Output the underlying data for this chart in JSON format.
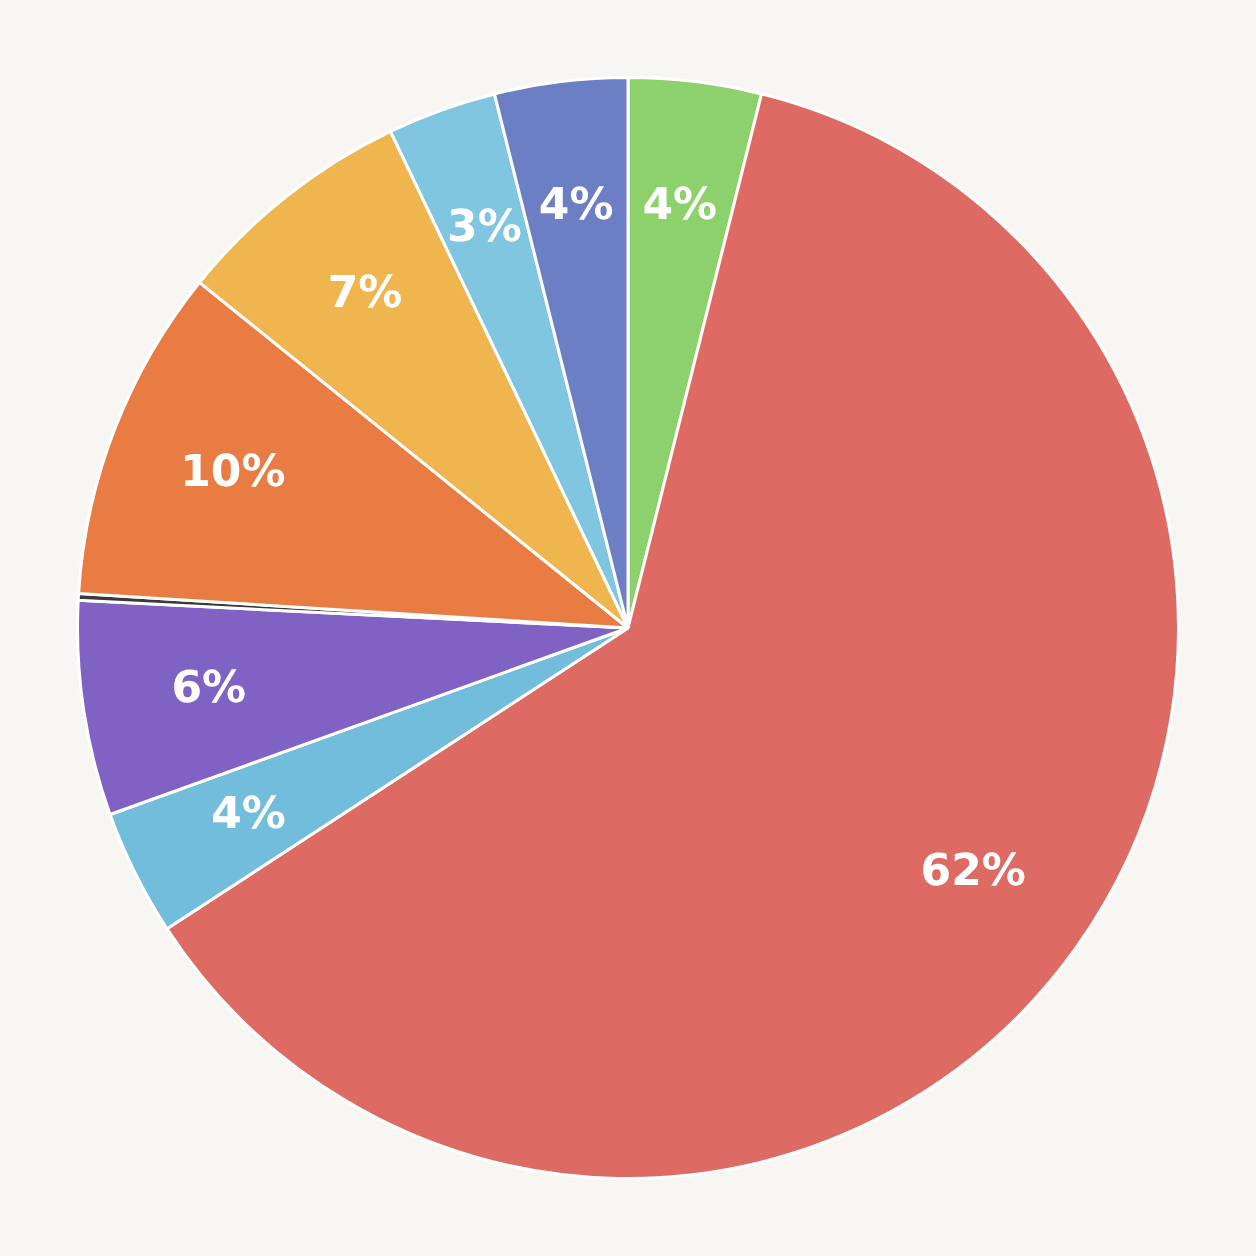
{
  "chart_data": {
    "type": "pie",
    "categories": [
      null,
      null,
      null,
      null,
      null,
      null,
      null,
      null,
      null
    ],
    "values": [
      3.9,
      61.9,
      3.7,
      6.3,
      0.2,
      9.8,
      7.1,
      3.2,
      3.9
    ],
    "colors": [
      "#8dd16d",
      "#de6b63",
      "#72bddc",
      "#8062c4",
      "#3a3a3a",
      "#e87c43",
      "#efb64f",
      "#80c6e0",
      "#6c7fc4"
    ],
    "value_labels": [
      "4%",
      "62%",
      "4%",
      "6%",
      null,
      "10%",
      "7%",
      "3%",
      "4%"
    ]
  }
}
